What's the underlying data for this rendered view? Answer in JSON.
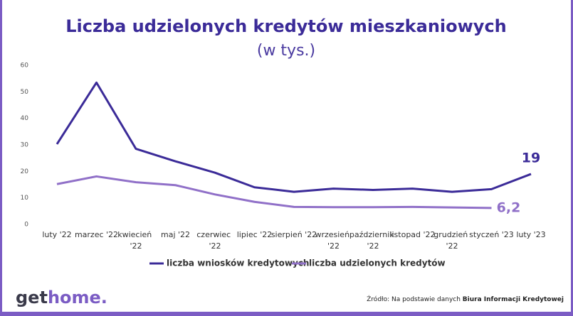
{
  "chart_data": {
    "type": "line",
    "title": "Liczba udzielonych kredytów mieszkaniowych",
    "subtitle": "(w tys.)",
    "categories": [
      "luty '22",
      "marzec '22",
      "kwiecień '22",
      "maj '22",
      "czerwiec '22",
      "lipiec '22",
      "sierpień '22",
      "wrzesień '22",
      "październik '22",
      "listopad '22",
      "grudzień '22",
      "styczeń '23",
      "luty '23"
    ],
    "series": [
      {
        "name": "liczba wniosków kredytowych",
        "color": "#3b2b98",
        "values": [
          30.3,
          53.5,
          28.5,
          23.8,
          19.5,
          14,
          12.3,
          13.5,
          13,
          13.5,
          12.3,
          13.3,
          19
        ],
        "value_labels": [
          null,
          null,
          null,
          null,
          null,
          null,
          null,
          null,
          null,
          null,
          null,
          null,
          "19"
        ]
      },
      {
        "name": "liczba udzielonych kredytów",
        "color": "#9070c8",
        "values": [
          15.2,
          18.1,
          15.9,
          14.8,
          11.3,
          8.5,
          6.6,
          6.5,
          6.5,
          6.6,
          6.4,
          6.2,
          null
        ],
        "value_labels": [
          null,
          null,
          null,
          null,
          null,
          null,
          null,
          null,
          null,
          null,
          null,
          "6,2",
          null
        ]
      }
    ],
    "ylim": [
      0,
      60
    ],
    "yticks": [
      0,
      10,
      20,
      30,
      40,
      50,
      60
    ],
    "grid": false,
    "legend": "bottom"
  },
  "footer": {
    "logo_dark": "get",
    "logo_light": "home.",
    "source": "Źródło: Na podstawie danych ",
    "source_bold": "Biura Informacji Kredytowej"
  }
}
